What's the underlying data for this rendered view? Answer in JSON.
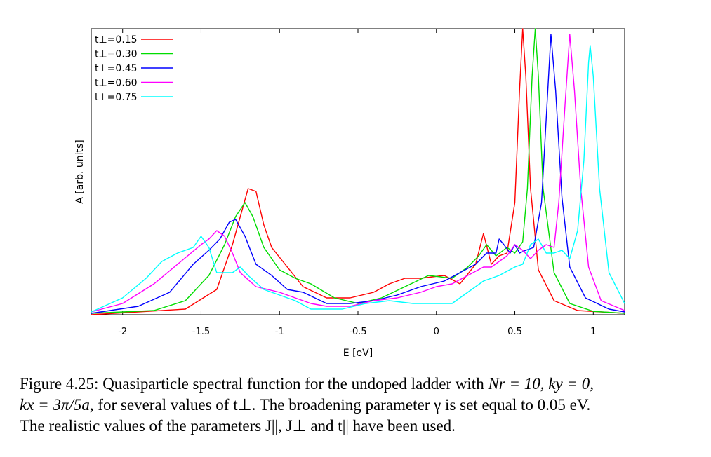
{
  "chart_data": {
    "type": "line",
    "xlabel": "E [eV]",
    "ylabel": "A [arb. units]",
    "xlim": [
      -2.2,
      1.2
    ],
    "ylim": [
      0,
      1
    ],
    "y_tick_labels_shown": false,
    "x_ticks": [
      -2,
      -1.5,
      -1,
      -0.5,
      0,
      0.5,
      1
    ],
    "legend_position": "top-left",
    "series": [
      {
        "name": "t⊥=0.15",
        "color": "#ff0000",
        "points": [
          [
            -2.2,
            0.0
          ],
          [
            -1.6,
            0.02
          ],
          [
            -1.4,
            0.09
          ],
          [
            -1.3,
            0.25
          ],
          [
            -1.2,
            0.45
          ],
          [
            -1.15,
            0.44
          ],
          [
            -1.1,
            0.32
          ],
          [
            -1.05,
            0.24
          ],
          [
            -0.95,
            0.17
          ],
          [
            -0.85,
            0.1
          ],
          [
            -0.7,
            0.06
          ],
          [
            -0.55,
            0.06
          ],
          [
            -0.4,
            0.08
          ],
          [
            -0.3,
            0.11
          ],
          [
            -0.2,
            0.13
          ],
          [
            -0.1,
            0.13
          ],
          [
            0.05,
            0.14
          ],
          [
            0.15,
            0.11
          ],
          [
            0.25,
            0.18
          ],
          [
            0.3,
            0.29
          ],
          [
            0.35,
            0.18
          ],
          [
            0.4,
            0.21
          ],
          [
            0.45,
            0.22
          ],
          [
            0.5,
            0.4
          ],
          [
            0.53,
            0.8
          ],
          [
            0.55,
            1.02
          ],
          [
            0.57,
            0.85
          ],
          [
            0.6,
            0.45
          ],
          [
            0.65,
            0.16
          ],
          [
            0.75,
            0.05
          ],
          [
            0.9,
            0.015
          ],
          [
            1.2,
            0.005
          ]
        ]
      },
      {
        "name": "t⊥=0.30",
        "color": "#00dd00",
        "points": [
          [
            -2.2,
            0.005
          ],
          [
            -1.8,
            0.015
          ],
          [
            -1.6,
            0.05
          ],
          [
            -1.45,
            0.14
          ],
          [
            -1.35,
            0.25
          ],
          [
            -1.28,
            0.35
          ],
          [
            -1.22,
            0.4
          ],
          [
            -1.17,
            0.35
          ],
          [
            -1.1,
            0.24
          ],
          [
            -1.0,
            0.16
          ],
          [
            -0.9,
            0.13
          ],
          [
            -0.8,
            0.11
          ],
          [
            -0.65,
            0.06
          ],
          [
            -0.5,
            0.04
          ],
          [
            -0.35,
            0.06
          ],
          [
            -0.2,
            0.1
          ],
          [
            -0.05,
            0.14
          ],
          [
            0.1,
            0.13
          ],
          [
            0.2,
            0.17
          ],
          [
            0.27,
            0.21
          ],
          [
            0.32,
            0.25
          ],
          [
            0.38,
            0.21
          ],
          [
            0.45,
            0.24
          ],
          [
            0.5,
            0.22
          ],
          [
            0.55,
            0.26
          ],
          [
            0.58,
            0.45
          ],
          [
            0.61,
            0.85
          ],
          [
            0.63,
            1.02
          ],
          [
            0.65,
            0.85
          ],
          [
            0.68,
            0.45
          ],
          [
            0.75,
            0.15
          ],
          [
            0.85,
            0.04
          ],
          [
            1.0,
            0.012
          ],
          [
            1.2,
            0.005
          ]
        ]
      },
      {
        "name": "t⊥=0.45",
        "color": "#0000ff",
        "points": [
          [
            -2.2,
            0.005
          ],
          [
            -1.9,
            0.03
          ],
          [
            -1.7,
            0.08
          ],
          [
            -1.55,
            0.18
          ],
          [
            -1.45,
            0.23
          ],
          [
            -1.38,
            0.27
          ],
          [
            -1.32,
            0.33
          ],
          [
            -1.28,
            0.34
          ],
          [
            -1.22,
            0.28
          ],
          [
            -1.15,
            0.18
          ],
          [
            -1.05,
            0.14
          ],
          [
            -0.95,
            0.09
          ],
          [
            -0.85,
            0.08
          ],
          [
            -0.7,
            0.04
          ],
          [
            -0.55,
            0.04
          ],
          [
            -0.4,
            0.05
          ],
          [
            -0.25,
            0.07
          ],
          [
            -0.1,
            0.1
          ],
          [
            0.05,
            0.12
          ],
          [
            0.15,
            0.15
          ],
          [
            0.25,
            0.18
          ],
          [
            0.32,
            0.22
          ],
          [
            0.38,
            0.22
          ],
          [
            0.4,
            0.27
          ],
          [
            0.43,
            0.25
          ],
          [
            0.47,
            0.22
          ],
          [
            0.5,
            0.25
          ],
          [
            0.53,
            0.22
          ],
          [
            0.57,
            0.23
          ],
          [
            0.62,
            0.24
          ],
          [
            0.67,
            0.4
          ],
          [
            0.7,
            0.7
          ],
          [
            0.73,
            1.0
          ],
          [
            0.76,
            0.8
          ],
          [
            0.8,
            0.42
          ],
          [
            0.85,
            0.17
          ],
          [
            0.95,
            0.06
          ],
          [
            1.1,
            0.02
          ],
          [
            1.2,
            0.01
          ]
        ]
      },
      {
        "name": "t⊥=0.60",
        "color": "#ff00ff",
        "points": [
          [
            -2.2,
            0.01
          ],
          [
            -2.0,
            0.04
          ],
          [
            -1.8,
            0.11
          ],
          [
            -1.65,
            0.18
          ],
          [
            -1.5,
            0.25
          ],
          [
            -1.45,
            0.27
          ],
          [
            -1.4,
            0.3
          ],
          [
            -1.35,
            0.28
          ],
          [
            -1.3,
            0.22
          ],
          [
            -1.25,
            0.15
          ],
          [
            -1.15,
            0.1
          ],
          [
            -1.0,
            0.08
          ],
          [
            -0.9,
            0.06
          ],
          [
            -0.8,
            0.04
          ],
          [
            -0.7,
            0.03
          ],
          [
            -0.55,
            0.03
          ],
          [
            -0.4,
            0.05
          ],
          [
            -0.25,
            0.06
          ],
          [
            -0.1,
            0.08
          ],
          [
            0.0,
            0.1
          ],
          [
            0.1,
            0.11
          ],
          [
            0.2,
            0.14
          ],
          [
            0.3,
            0.17
          ],
          [
            0.35,
            0.17
          ],
          [
            0.45,
            0.21
          ],
          [
            0.5,
            0.25
          ],
          [
            0.55,
            0.23
          ],
          [
            0.6,
            0.2
          ],
          [
            0.65,
            0.23
          ],
          [
            0.7,
            0.25
          ],
          [
            0.75,
            0.24
          ],
          [
            0.78,
            0.4
          ],
          [
            0.82,
            0.75
          ],
          [
            0.85,
            1.0
          ],
          [
            0.88,
            0.8
          ],
          [
            0.92,
            0.45
          ],
          [
            0.97,
            0.17
          ],
          [
            1.05,
            0.05
          ],
          [
            1.2,
            0.015
          ]
        ]
      },
      {
        "name": "t⊥=0.75",
        "color": "#00ffff",
        "points": [
          [
            -2.2,
            0.01
          ],
          [
            -2.0,
            0.06
          ],
          [
            -1.85,
            0.13
          ],
          [
            -1.75,
            0.19
          ],
          [
            -1.65,
            0.22
          ],
          [
            -1.55,
            0.24
          ],
          [
            -1.5,
            0.28
          ],
          [
            -1.45,
            0.24
          ],
          [
            -1.4,
            0.15
          ],
          [
            -1.35,
            0.15
          ],
          [
            -1.3,
            0.15
          ],
          [
            -1.25,
            0.17
          ],
          [
            -1.2,
            0.14
          ],
          [
            -1.1,
            0.09
          ],
          [
            -1.0,
            0.07
          ],
          [
            -0.9,
            0.05
          ],
          [
            -0.8,
            0.02
          ],
          [
            -0.6,
            0.02
          ],
          [
            -0.45,
            0.04
          ],
          [
            -0.3,
            0.05
          ],
          [
            -0.15,
            0.04
          ],
          [
            0.0,
            0.04
          ],
          [
            0.1,
            0.04
          ],
          [
            0.2,
            0.08
          ],
          [
            0.3,
            0.12
          ],
          [
            0.4,
            0.14
          ],
          [
            0.5,
            0.17
          ],
          [
            0.55,
            0.18
          ],
          [
            0.6,
            0.25
          ],
          [
            0.65,
            0.27
          ],
          [
            0.7,
            0.22
          ],
          [
            0.75,
            0.22
          ],
          [
            0.8,
            0.23
          ],
          [
            0.85,
            0.2
          ],
          [
            0.9,
            0.3
          ],
          [
            0.94,
            0.55
          ],
          [
            0.97,
            0.9
          ],
          [
            0.98,
            0.96
          ],
          [
            1.0,
            0.85
          ],
          [
            1.04,
            0.45
          ],
          [
            1.1,
            0.15
          ],
          [
            1.2,
            0.04
          ]
        ]
      }
    ]
  },
  "legend": [
    {
      "label": "t⊥=0.15",
      "color": "#ff0000"
    },
    {
      "label": "t⊥=0.30",
      "color": "#00dd00"
    },
    {
      "label": "t⊥=0.45",
      "color": "#0000ff"
    },
    {
      "label": "t⊥=0.60",
      "color": "#ff00ff"
    },
    {
      "label": "t⊥=0.75",
      "color": "#00ffff"
    }
  ],
  "caption": {
    "line1_prefix": "Figure 4.25: Quasiparticle spectral function for the undoped ladder with ",
    "line1_math": "Nr = 10, ky = 0,",
    "line2_math": "kx = 3π/5a",
    "line2_rest": ", for several values of t⊥. The broadening parameter γ is set equal to 0.05 eV.",
    "line3": "The realistic values of the parameters J||, J⊥ and t|| have been used."
  }
}
